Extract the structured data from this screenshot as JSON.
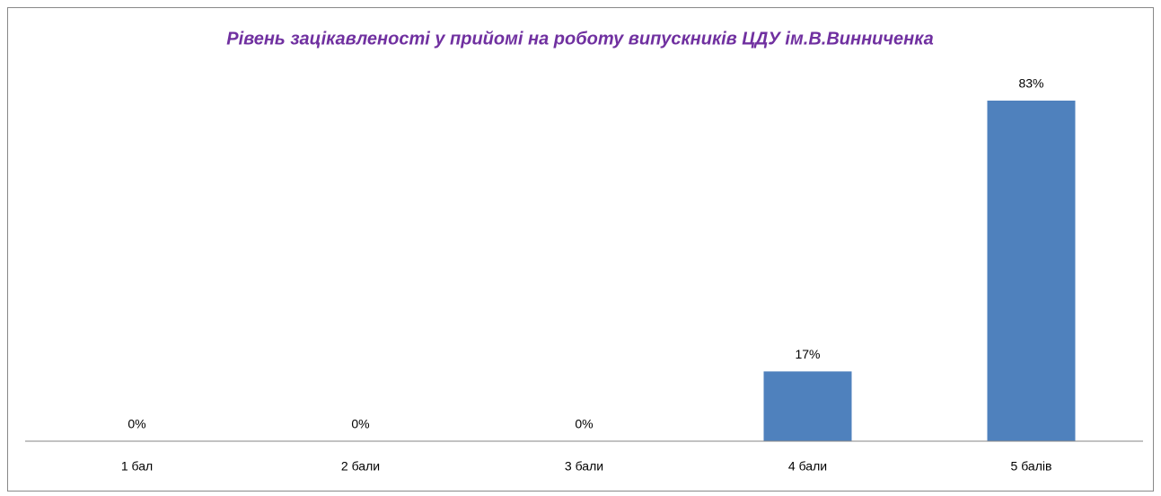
{
  "chart_data": {
    "type": "bar",
    "title": "Рівень зацікавленості у прийомі на роботу випускників ЦДУ ім.В.Винниченка",
    "categories": [
      "1 бал",
      "2 бали",
      "3 бали",
      "4 бали",
      "5 балів"
    ],
    "values": [
      0,
      0,
      0,
      17,
      83
    ],
    "value_labels": [
      "0%",
      "0%",
      "0%",
      "17%",
      "83%"
    ],
    "color": "#4f81bd",
    "ylim": [
      0,
      90
    ]
  }
}
